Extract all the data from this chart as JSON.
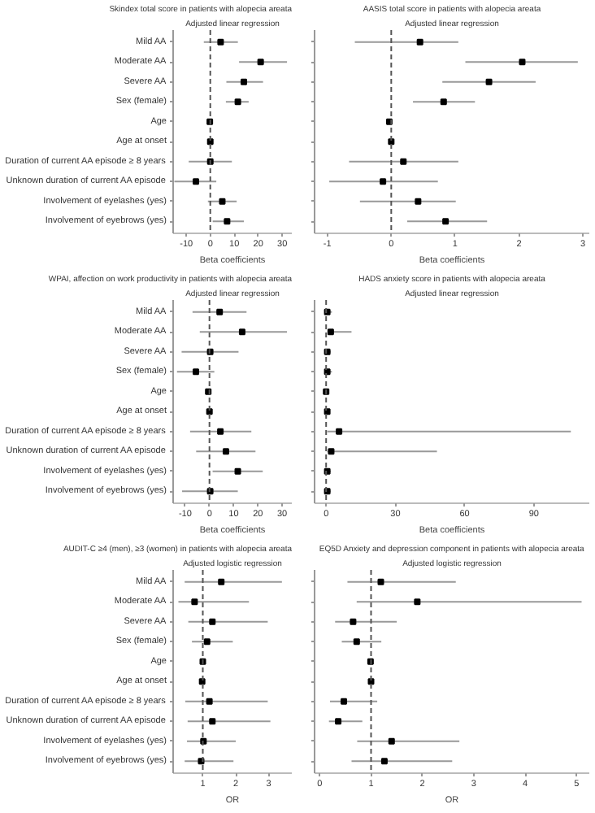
{
  "chart_data": [
    {
      "type": "scatter",
      "orientation": "horizontal",
      "title": "Skindex total score in patients with alopecia areata",
      "subtitle": "Adjusted linear regression",
      "xlabel": "Beta coefficients",
      "categories": [
        "Mild AA",
        "Moderate AA",
        "Severe AA",
        "Sex (female)",
        "Age",
        "Age at onset",
        "Duration of current AA episode ≥ 8 years",
        "Unknown duration of current AA episode",
        "Involvement of eyelashes (yes)",
        "Involvement of eyebrows (yes)"
      ],
      "values": [
        4.3,
        21,
        14,
        11.5,
        -0.2,
        0,
        0,
        -6,
        5,
        7
      ],
      "errors": [
        [
          -2.7,
          11.5
        ],
        [
          12,
          32
        ],
        [
          6.7,
          22
        ],
        [
          6.5,
          16
        ],
        [
          -0.5,
          0.3
        ],
        [
          -0.3,
          0.3
        ],
        [
          -9,
          9
        ],
        [
          -15,
          2.5
        ],
        [
          -1,
          11
        ],
        [
          1,
          14
        ]
      ],
      "xlim": [
        -15.5,
        34
      ],
      "xticks": [
        -10,
        0,
        10,
        20,
        30
      ],
      "ref_lines": [
        {
          "axis": "x",
          "value": 0,
          "line_style": "dashed"
        }
      ],
      "marker": "square",
      "grid": false
    },
    {
      "type": "scatter",
      "orientation": "horizontal",
      "title": "AASIS total score in patients with alopecia areata",
      "subtitle": "Adjusted linear regression",
      "xlabel": "Beta coefficients",
      "categories": [
        null,
        null,
        null,
        null,
        null,
        null,
        null,
        null,
        null,
        null
      ],
      "values": [
        0.45,
        2.05,
        1.53,
        0.82,
        -0.03,
        0,
        0.19,
        -0.13,
        0.42,
        0.85
      ],
      "errors": [
        [
          -0.57,
          1.05
        ],
        [
          1.16,
          2.92
        ],
        [
          0.8,
          2.26
        ],
        [
          0.34,
          1.31
        ],
        [
          -0.06,
          0
        ],
        [
          -0.02,
          0.02
        ],
        [
          -0.66,
          1.05
        ],
        [
          -0.97,
          0.73
        ],
        [
          -0.49,
          1.01
        ],
        [
          0.25,
          1.5
        ]
      ],
      "xlim": [
        -1.2,
        3.1
      ],
      "xticks": [
        -1,
        0,
        1,
        2,
        3
      ],
      "ref_lines": [
        {
          "axis": "x",
          "value": 0,
          "line_style": "dashed"
        }
      ],
      "marker": "square",
      "grid": false,
      "tick_labels": "x"
    },
    {
      "type": "scatter",
      "orientation": "horizontal",
      "title": "WPAI, affection on work productivity in patients with alopecia areata",
      "subtitle": "Adjusted linear regression",
      "xlabel": "Beta coefficients",
      "categories": [
        "Mild AA",
        "Moderate AA",
        "Severe AA",
        "Sex (female)",
        "Age",
        "Age at onset",
        "Duration of current AA episode ≥ 8 years",
        "Unknown duration of current AA episode",
        "Involvement of eyelashes (yes)",
        "Involvement of eyebrows (yes)"
      ],
      "values": [
        4.2,
        13.5,
        0.3,
        -5.6,
        -0.5,
        0,
        4.5,
        6.8,
        11.7,
        0.3
      ],
      "errors": [
        [
          -7,
          15.3
        ],
        [
          -4,
          32
        ],
        [
          -11.5,
          12
        ],
        [
          -13.4,
          2
        ],
        [
          -1,
          0
        ],
        [
          -0.3,
          0.3
        ],
        [
          -8,
          17.3
        ],
        [
          -5.5,
          19
        ],
        [
          1.3,
          22
        ],
        [
          -11.3,
          11.7
        ]
      ],
      "xlim": [
        -15,
        34
      ],
      "xticks": [
        -10,
        0,
        10,
        20,
        30
      ],
      "ref_lines": [
        {
          "axis": "x",
          "value": 0,
          "line_style": "dashed"
        }
      ],
      "marker": "square",
      "grid": false
    },
    {
      "type": "scatter",
      "orientation": "horizontal",
      "title": "HADS anxiety score in patients with alopecia areata",
      "subtitle": "Adjusted linear regression",
      "xlabel": "Beta coefficients",
      "categories": [
        null,
        null,
        null,
        null,
        null,
        null,
        null,
        null,
        null,
        null
      ],
      "values": [
        0.5,
        2,
        0.5,
        0.5,
        0,
        0.5,
        5.6,
        2.2,
        0.5,
        0.5
      ],
      "errors": [
        [
          0,
          2.5
        ],
        [
          0.6,
          11
        ],
        [
          0,
          2
        ],
        [
          0,
          2.5
        ],
        [
          -0.5,
          0.5
        ],
        [
          0,
          1
        ],
        [
          0.5,
          106
        ],
        [
          0.5,
          48
        ],
        [
          0,
          2
        ],
        [
          0,
          2
        ]
      ],
      "xlim": [
        -5,
        114
      ],
      "xticks": [
        0,
        30,
        60,
        90
      ],
      "ref_lines": [
        {
          "axis": "x",
          "value": 0,
          "line_style": "dashed"
        }
      ],
      "marker": "square",
      "grid": false,
      "tick_labels": "x"
    },
    {
      "type": "scatter",
      "orientation": "horizontal",
      "title": "AUDIT-C ≥4 (men), ≥3 (women) in patients with alopecia areata",
      "subtitle": "Adjusted logistic regression",
      "xlabel": "OR",
      "categories": [
        "Mild AA",
        "Moderate AA",
        "Severe AA",
        "Sex (female)",
        "Age",
        "Age at onset",
        "Duration of current AA episode ≥ 8 years",
        "Unknown duration of current AA episode",
        "Involvement of eyelashes (yes)",
        "Involvement of eyebrows (yes)"
      ],
      "values": [
        1.56,
        0.75,
        1.29,
        1.13,
        1.0,
        0.98,
        1.2,
        1.29,
        1.02,
        0.95
      ],
      "errors": [
        [
          0.45,
          3.4
        ],
        [
          0.26,
          2.4
        ],
        [
          0.56,
          2.97
        ],
        [
          0.67,
          1.91
        ],
        [
          0.97,
          1.04
        ],
        [
          0.96,
          1.0
        ],
        [
          0.47,
          2.97
        ],
        [
          0.54,
          3.05
        ],
        [
          0.52,
          2.0
        ],
        [
          0.45,
          1.93
        ]
      ],
      "xlim": [
        0.1,
        3.7
      ],
      "xticks": [
        1,
        2,
        3
      ],
      "ref_lines": [
        {
          "axis": "x",
          "value": 1,
          "line_style": "dashed"
        }
      ],
      "marker": "square",
      "grid": false
    },
    {
      "type": "scatter",
      "orientation": "horizontal",
      "title": "EQ5D Anxiety and depression component in patients with alopecia areata",
      "subtitle": "Adjusted logistic regression",
      "xlabel": "OR",
      "categories": [
        null,
        null,
        null,
        null,
        null,
        null,
        null,
        null,
        null,
        null
      ],
      "values": [
        1.19,
        1.9,
        0.65,
        0.72,
        0.99,
        1.0,
        0.47,
        0.36,
        1.4,
        1.26
      ],
      "errors": [
        [
          0.54,
          2.65
        ],
        [
          0.72,
          5.1
        ],
        [
          0.3,
          1.5
        ],
        [
          0.43,
          1.2
        ],
        [
          0.97,
          1.01
        ],
        [
          0.98,
          1.02
        ],
        [
          0.2,
          1.12
        ],
        [
          0.18,
          0.83
        ],
        [
          0.73,
          2.72
        ],
        [
          0.62,
          2.58
        ]
      ],
      "xlim": [
        -0.1,
        5.25
      ],
      "xticks": [
        0,
        1,
        2,
        3,
        4,
        5
      ],
      "ref_lines": [
        {
          "axis": "x",
          "value": 1,
          "line_style": "dashed"
        }
      ],
      "marker": "square",
      "grid": false,
      "tick_labels": "x"
    }
  ]
}
